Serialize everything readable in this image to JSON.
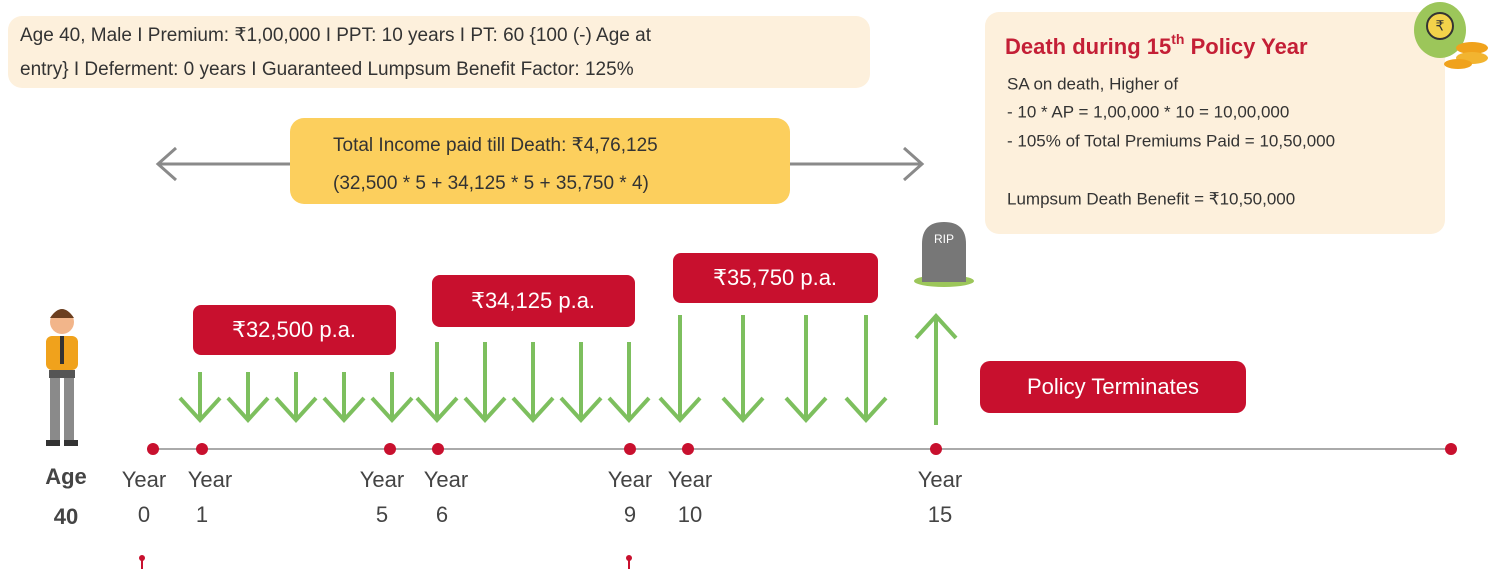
{
  "header": {
    "lines": [
      "Age 40, Male  I  Premium: ₹1,00,000  I  PPT: 10 years  I  PT: 60 {100 (-) Age at",
      "entry}  I  Deferment: 0 years  I  Guaranteed Lumpsum Benefit Factor: 125%"
    ]
  },
  "death_box": {
    "title": {
      "pre": "Death during 15",
      "sup": "th",
      "post": " Policy Year"
    },
    "lines": [
      "SA on death, Higher of",
      "- 10 * AP = 1,00,000 * 10 = 10,00,000",
      "- 105% of Total Premiums Paid = 10,50,000",
      "Lumpsum Death Benefit = ₹10,50,000"
    ]
  },
  "total_income": {
    "lines": [
      "Total Income paid till Death: ₹4,76,125",
      "(32,500 * 5 + 34,125 * 5 + 35,750 * 4)"
    ]
  },
  "income_labels": [
    "₹32,500 p.a.",
    "₹34,125 p.a.",
    "₹35,750 p.a."
  ],
  "tombstone": "RIP",
  "terminates": "Policy Terminates",
  "age": {
    "label": "Age",
    "value": "40"
  },
  "timeline": [
    {
      "label": "Year",
      "number": "0"
    },
    {
      "label": "Year",
      "number": "1"
    },
    {
      "label": "Year",
      "number": "5"
    },
    {
      "label": "Year",
      "number": "6"
    },
    {
      "label": "Year",
      "number": "9"
    },
    {
      "label": "Year",
      "number": "10"
    },
    {
      "label": "Year",
      "number": "15"
    }
  ]
}
